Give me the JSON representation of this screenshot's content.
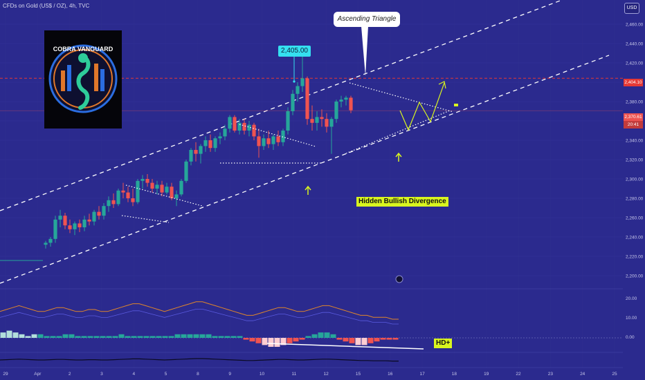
{
  "header": {
    "symbol_info": "CFDs on Gold (US$ / OZ), 4h, TVC",
    "currency": "USD"
  },
  "annotations": {
    "pattern_label": "Ascending Triangle",
    "price_label": "2,405.00",
    "divergence_label": "Hidden Bullish Divergence",
    "hd_label": "HD+"
  },
  "logo": {
    "text": "COBRA VANGUARD",
    "icon": "cobra-logo-icon"
  },
  "price_tags": {
    "resistance": "2,404.10",
    "current": "2,370.61",
    "countdown": "20:41"
  },
  "colors": {
    "background": "#2b2a8e",
    "bull": "#26a69a",
    "bear": "#ef5350",
    "resistance": "#e53935",
    "highlight": "#d9f51f",
    "price_tag": "#35e0f0"
  },
  "chart_data": {
    "type": "candlestick",
    "timeframe": "4h",
    "y_axis_labels": [
      "2,460.00",
      "2,440.00",
      "2,420.00",
      "2,400.00",
      "2,380.00",
      "2,360.00",
      "2,340.00",
      "2,320.00",
      "2,300.00",
      "2,280.00",
      "2,260.00",
      "2,240.00",
      "2,220.00",
      "2,200.00"
    ],
    "x_axis_labels": [
      "29",
      "Apr",
      "2",
      "3",
      "4",
      "5",
      "8",
      "9",
      "10",
      "11",
      "12",
      "15",
      "16",
      "17",
      "18",
      "19",
      "22",
      "23",
      "24",
      "25"
    ],
    "ylim": [
      2200,
      2460
    ],
    "resistance_level": 2404.1,
    "current_price": 2370.61,
    "indicator_axis_labels": [
      "20.00",
      "10.00",
      "0.00"
    ],
    "candles": [
      {
        "o": 2232,
        "h": 2236,
        "l": 2228,
        "c": 2234
      },
      {
        "o": 2234,
        "h": 2240,
        "l": 2230,
        "c": 2238
      },
      {
        "o": 2238,
        "h": 2262,
        "l": 2234,
        "c": 2258
      },
      {
        "o": 2258,
        "h": 2268,
        "l": 2250,
        "c": 2262
      },
      {
        "o": 2262,
        "h": 2265,
        "l": 2248,
        "c": 2252
      },
      {
        "o": 2252,
        "h": 2258,
        "l": 2244,
        "c": 2248
      },
      {
        "o": 2248,
        "h": 2256,
        "l": 2242,
        "c": 2254
      },
      {
        "o": 2254,
        "h": 2258,
        "l": 2245,
        "c": 2250
      },
      {
        "o": 2250,
        "h": 2262,
        "l": 2246,
        "c": 2258
      },
      {
        "o": 2258,
        "h": 2264,
        "l": 2252,
        "c": 2256
      },
      {
        "o": 2256,
        "h": 2268,
        "l": 2252,
        "c": 2266
      },
      {
        "o": 2266,
        "h": 2272,
        "l": 2258,
        "c": 2262
      },
      {
        "o": 2262,
        "h": 2275,
        "l": 2258,
        "c": 2272
      },
      {
        "o": 2272,
        "h": 2282,
        "l": 2266,
        "c": 2278
      },
      {
        "o": 2278,
        "h": 2285,
        "l": 2270,
        "c": 2274
      },
      {
        "o": 2274,
        "h": 2290,
        "l": 2272,
        "c": 2288
      },
      {
        "o": 2288,
        "h": 2296,
        "l": 2280,
        "c": 2286
      },
      {
        "o": 2286,
        "h": 2292,
        "l": 2276,
        "c": 2280
      },
      {
        "o": 2280,
        "h": 2290,
        "l": 2272,
        "c": 2276
      },
      {
        "o": 2276,
        "h": 2300,
        "l": 2274,
        "c": 2298
      },
      {
        "o": 2298,
        "h": 2304,
        "l": 2290,
        "c": 2300
      },
      {
        "o": 2300,
        "h": 2305,
        "l": 2292,
        "c": 2296
      },
      {
        "o": 2296,
        "h": 2300,
        "l": 2286,
        "c": 2290
      },
      {
        "o": 2290,
        "h": 2298,
        "l": 2284,
        "c": 2294
      },
      {
        "o": 2294,
        "h": 2298,
        "l": 2282,
        "c": 2286
      },
      {
        "o": 2286,
        "h": 2296,
        "l": 2284,
        "c": 2292
      },
      {
        "o": 2292,
        "h": 2296,
        "l": 2278,
        "c": 2280
      },
      {
        "o": 2280,
        "h": 2288,
        "l": 2272,
        "c": 2284
      },
      {
        "o": 2284,
        "h": 2300,
        "l": 2282,
        "c": 2298
      },
      {
        "o": 2298,
        "h": 2320,
        "l": 2296,
        "c": 2318
      },
      {
        "o": 2318,
        "h": 2332,
        "l": 2314,
        "c": 2330
      },
      {
        "o": 2330,
        "h": 2338,
        "l": 2318,
        "c": 2326
      },
      {
        "o": 2326,
        "h": 2336,
        "l": 2316,
        "c": 2334
      },
      {
        "o": 2334,
        "h": 2344,
        "l": 2328,
        "c": 2340
      },
      {
        "o": 2340,
        "h": 2346,
        "l": 2328,
        "c": 2332
      },
      {
        "o": 2332,
        "h": 2344,
        "l": 2328,
        "c": 2342
      },
      {
        "o": 2342,
        "h": 2348,
        "l": 2336,
        "c": 2344
      },
      {
        "o": 2344,
        "h": 2356,
        "l": 2340,
        "c": 2352
      },
      {
        "o": 2352,
        "h": 2366,
        "l": 2348,
        "c": 2364
      },
      {
        "o": 2364,
        "h": 2366,
        "l": 2348,
        "c": 2350
      },
      {
        "o": 2350,
        "h": 2362,
        "l": 2346,
        "c": 2358
      },
      {
        "o": 2358,
        "h": 2362,
        "l": 2346,
        "c": 2350
      },
      {
        "o": 2350,
        "h": 2360,
        "l": 2344,
        "c": 2356
      },
      {
        "o": 2356,
        "h": 2358,
        "l": 2340,
        "c": 2344
      },
      {
        "o": 2344,
        "h": 2352,
        "l": 2322,
        "c": 2334
      },
      {
        "o": 2334,
        "h": 2346,
        "l": 2330,
        "c": 2342
      },
      {
        "o": 2342,
        "h": 2350,
        "l": 2332,
        "c": 2336
      },
      {
        "o": 2336,
        "h": 2346,
        "l": 2330,
        "c": 2344
      },
      {
        "o": 2344,
        "h": 2350,
        "l": 2334,
        "c": 2338
      },
      {
        "o": 2338,
        "h": 2352,
        "l": 2334,
        "c": 2350
      },
      {
        "o": 2350,
        "h": 2374,
        "l": 2346,
        "c": 2370
      },
      {
        "o": 2370,
        "h": 2392,
        "l": 2366,
        "c": 2388
      },
      {
        "o": 2388,
        "h": 2400,
        "l": 2380,
        "c": 2396
      },
      {
        "o": 2396,
        "h": 2430,
        "l": 2390,
        "c": 2404
      },
      {
        "o": 2404,
        "h": 2406,
        "l": 2356,
        "c": 2362
      },
      {
        "o": 2362,
        "h": 2376,
        "l": 2350,
        "c": 2358
      },
      {
        "o": 2358,
        "h": 2370,
        "l": 2350,
        "c": 2364
      },
      {
        "o": 2364,
        "h": 2372,
        "l": 2354,
        "c": 2362
      },
      {
        "o": 2362,
        "h": 2368,
        "l": 2348,
        "c": 2354
      },
      {
        "o": 2354,
        "h": 2364,
        "l": 2326,
        "c": 2362
      },
      {
        "o": 2362,
        "h": 2382,
        "l": 2358,
        "c": 2380
      },
      {
        "o": 2380,
        "h": 2386,
        "l": 2374,
        "c": 2382
      },
      {
        "o": 2382,
        "h": 2386,
        "l": 2376,
        "c": 2384
      },
      {
        "o": 2384,
        "h": 2386,
        "l": 2368,
        "c": 2371
      }
    ],
    "macd_histogram": [
      3,
      4,
      3,
      2,
      1,
      2,
      2,
      1,
      1,
      1,
      2,
      2,
      1,
      1,
      1,
      1,
      1,
      1,
      1,
      2,
      1,
      1,
      1,
      1,
      1,
      1,
      1,
      1,
      2,
      2,
      2,
      2,
      2,
      2,
      1,
      1,
      1,
      1,
      1,
      -1,
      -2,
      -3,
      -4,
      -5,
      -5,
      -4,
      -3,
      -2,
      -1,
      1,
      2,
      3,
      3,
      2,
      -1,
      -2,
      -3,
      -4,
      -4,
      -3,
      -2,
      -1,
      -1,
      -1
    ],
    "rsi_series": [
      14,
      15,
      16,
      17,
      16,
      15,
      14,
      14,
      15,
      16,
      16,
      15,
      14,
      14,
      15,
      15,
      14,
      14,
      15,
      16,
      17,
      18,
      18,
      17,
      16,
      15,
      14,
      15,
      16,
      17,
      18,
      19,
      19,
      18,
      17,
      16,
      15,
      14,
      13,
      12,
      12,
      13,
      14,
      15,
      16,
      16,
      15,
      14,
      14,
      15,
      16,
      17,
      17,
      16,
      15,
      14,
      13,
      12,
      12,
      11,
      11,
      11,
      10,
      10
    ]
  }
}
